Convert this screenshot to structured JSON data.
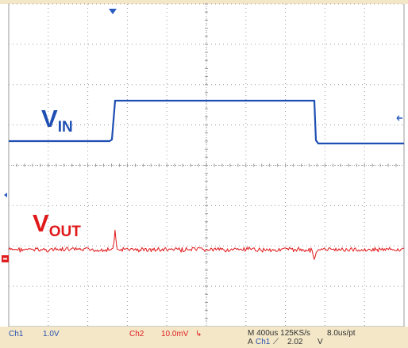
{
  "traces": {
    "vin": {
      "main": "V",
      "sub": "IN",
      "color": "#1f4fb3"
    },
    "vout": {
      "main": "V",
      "sub": "OUT",
      "color": "#e0191b"
    }
  },
  "statusbar": {
    "ch1_label": "Ch1",
    "ch1_scale": "1.0V",
    "ch2_label": "Ch2",
    "ch2_scale": "10.0mV",
    "ch2_coupling_symbol": "↳",
    "timebase": "M 400us 125KS/s",
    "sample_interval": "8.0us/pt",
    "trigger_prefix": "A",
    "trigger_source": "Ch1",
    "trigger_slope": "⟋",
    "trigger_level": "2.02",
    "trigger_unit": "V"
  },
  "colors": {
    "grid": "#9a9a9a",
    "ch1": "#1f4fb3",
    "ch2": "#e0191b",
    "status_bg": "#f3e7c8",
    "marker_red": "#e02020"
  }
}
